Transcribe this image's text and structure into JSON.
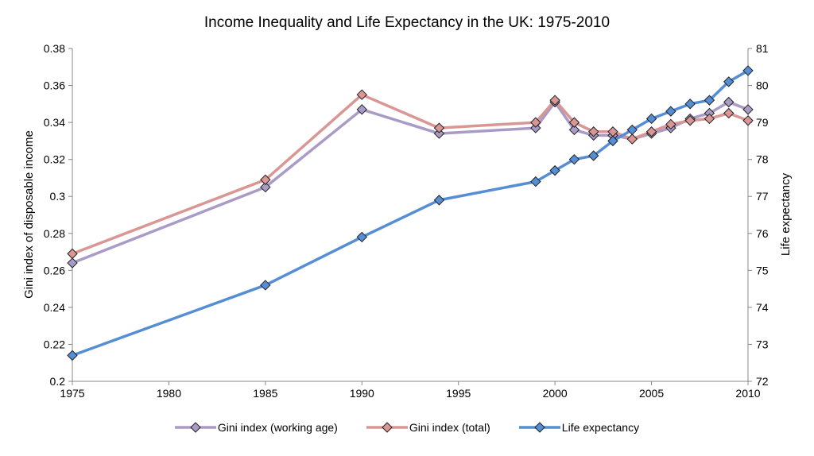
{
  "chart_data": {
    "type": "line",
    "title": "Income Inequality and Life Expectancy in the UK: 1975-2010",
    "xlabel": "",
    "ylabel": "Gini index of disposable income",
    "y2label": "Life expectancy",
    "xlim": [
      1975,
      2010
    ],
    "ylim": [
      0.2,
      0.38
    ],
    "y2lim": [
      72,
      81
    ],
    "xticks": [
      "1975",
      "1980",
      "1985",
      "1990",
      "1995",
      "2000",
      "2005",
      "2010"
    ],
    "yticks": [
      "0.2",
      "0.22",
      "0.24",
      "0.26",
      "0.28",
      "0.3",
      "0.32",
      "0.34",
      "0.36",
      "0.38"
    ],
    "y2ticks": [
      "72",
      "73",
      "74",
      "75",
      "76",
      "77",
      "78",
      "79",
      "80",
      "81"
    ],
    "grid": false,
    "legend_position": "bottom",
    "series": [
      {
        "name": "Gini index (working age)",
        "axis": "left",
        "color": "#a99bc6",
        "x": [
          1975,
          1985,
          1990,
          1994,
          1999,
          2000,
          2001,
          2002,
          2003,
          2004,
          2005,
          2006,
          2007,
          2008,
          2009,
          2010
        ],
        "y": [
          0.264,
          0.305,
          0.347,
          0.334,
          0.337,
          0.351,
          0.336,
          0.333,
          0.333,
          0.331,
          0.334,
          0.337,
          0.342,
          0.345,
          0.351,
          0.347
        ]
      },
      {
        "name": "Gini index (total)",
        "axis": "left",
        "color": "#d99694",
        "x": [
          1975,
          1985,
          1990,
          1994,
          1999,
          2000,
          2001,
          2002,
          2003,
          2004,
          2005,
          2006,
          2007,
          2008,
          2009,
          2010
        ],
        "y": [
          0.269,
          0.309,
          0.355,
          0.337,
          0.34,
          0.352,
          0.34,
          0.335,
          0.335,
          0.331,
          0.335,
          0.339,
          0.341,
          0.342,
          0.345,
          0.341
        ]
      },
      {
        "name": "Life expectancy",
        "axis": "right",
        "color": "#558ed5",
        "x": [
          1975,
          1985,
          1990,
          1994,
          1999,
          2000,
          2001,
          2002,
          2003,
          2004,
          2005,
          2006,
          2007,
          2008,
          2009,
          2010
        ],
        "y": [
          72.7,
          74.6,
          75.9,
          76.9,
          77.4,
          77.7,
          78.0,
          78.1,
          78.5,
          78.8,
          79.1,
          79.3,
          79.5,
          79.6,
          80.1,
          80.4
        ]
      }
    ]
  }
}
